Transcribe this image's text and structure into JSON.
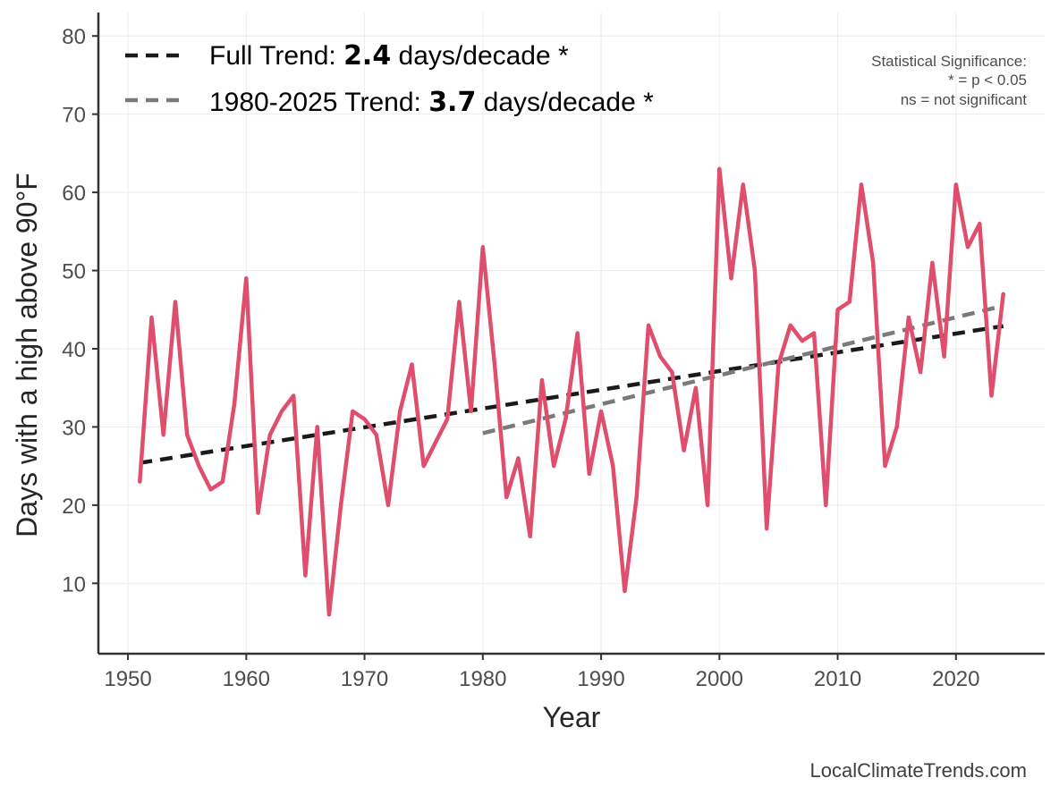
{
  "chart_data": {
    "type": "line",
    "xlabel": "Year",
    "ylabel": "Days with a high above 90°F",
    "xlim": [
      1947.5,
      2027.5
    ],
    "ylim": [
      1,
      83
    ],
    "xticks": [
      1950,
      1960,
      1970,
      1980,
      1990,
      2000,
      2010,
      2020
    ],
    "yticks": [
      10,
      20,
      30,
      40,
      50,
      60,
      70,
      80
    ],
    "grid": true,
    "x": [
      1951,
      1952,
      1953,
      1954,
      1955,
      1956,
      1957,
      1958,
      1959,
      1960,
      1961,
      1962,
      1963,
      1964,
      1965,
      1966,
      1967,
      1968,
      1969,
      1970,
      1971,
      1972,
      1973,
      1974,
      1975,
      1976,
      1977,
      1978,
      1979,
      1980,
      1981,
      1982,
      1983,
      1984,
      1985,
      1986,
      1987,
      1988,
      1989,
      1990,
      1991,
      1992,
      1993,
      1994,
      1995,
      1996,
      1997,
      1998,
      1999,
      2000,
      2001,
      2002,
      2003,
      2004,
      2005,
      2006,
      2007,
      2008,
      2009,
      2010,
      2011,
      2012,
      2013,
      2014,
      2015,
      2016,
      2017,
      2018,
      2019,
      2020,
      2021,
      2022,
      2023,
      2024
    ],
    "series": [
      {
        "color": "#e04e6d",
        "values": [
          23,
          44,
          29,
          46,
          29,
          25,
          22,
          23,
          33,
          49,
          19,
          29,
          32,
          34,
          11,
          30,
          6,
          20,
          32,
          31,
          29,
          20,
          32,
          38,
          25,
          28,
          31,
          46,
          32,
          53,
          38,
          21,
          26,
          16,
          36,
          25,
          31,
          42,
          24,
          32,
          25,
          9,
          21,
          43,
          39,
          37,
          27,
          35,
          20,
          63,
          49,
          61,
          50,
          17,
          38,
          43,
          41,
          42,
          20,
          45,
          46,
          61,
          51,
          25,
          30,
          44,
          37,
          51,
          39,
          61,
          53,
          56,
          34,
          47
        ]
      }
    ],
    "trends": [
      {
        "label_prefix": "Full Trend: ",
        "value": "2.4",
        "label_suffix": " days/decade *",
        "x_start": 1951,
        "x_end": 2024,
        "y_start": 25.4,
        "y_end": 42.9,
        "color": "#1a1a1a"
      },
      {
        "label_prefix": "1980-2025 Trend: ",
        "value": "3.7",
        "label_suffix": " days/decade *",
        "x_start": 1980,
        "x_end": 2024,
        "y_start": 29.2,
        "y_end": 45.5,
        "color": "#7a7a7a"
      }
    ],
    "legend_position": "top-left",
    "significance_note": [
      "Statistical Significance:",
      "* = p < 0.05",
      "ns = not significant"
    ],
    "credit": "LocalClimateTrends.com"
  }
}
